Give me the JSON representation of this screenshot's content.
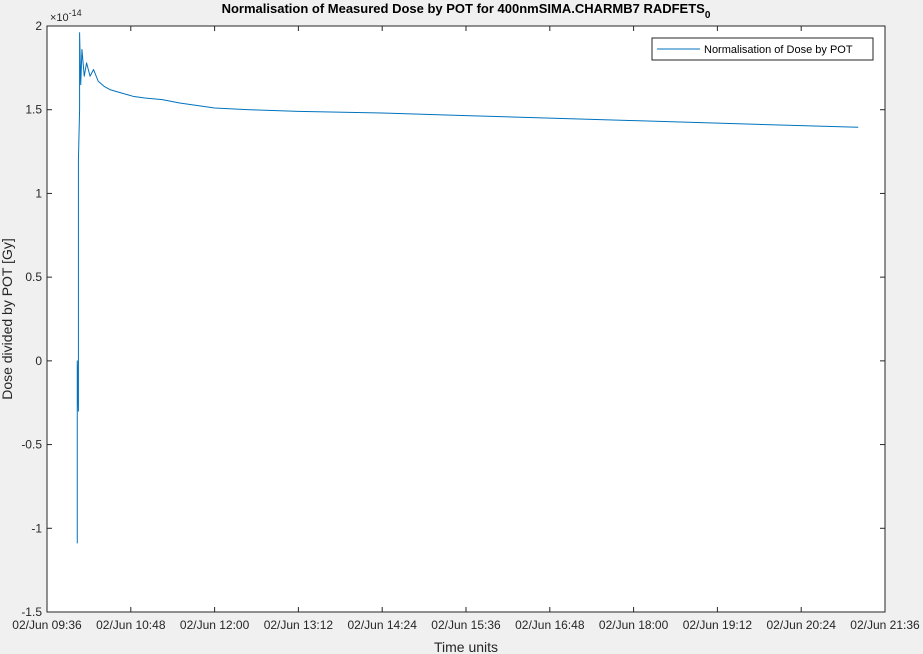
{
  "chart_data": {
    "type": "line",
    "title": "Normalisation of Measured Dose by POT for 400nmSIMA.CHARMB7 RADFETS",
    "title_subscript": "0",
    "xlabel": "Time units",
    "ylabel": "Dose divided by POT [Gy]",
    "y_multiplier_label": "×10",
    "y_multiplier_exponent": "-14",
    "xlim": [
      "02/Jun 09:36",
      "02/Jun 21:36"
    ],
    "ylim": [
      -1.5,
      2
    ],
    "x_ticks": [
      "02/Jun 09:36",
      "02/Jun 10:48",
      "02/Jun 12:00",
      "02/Jun 13:12",
      "02/Jun 14:24",
      "02/Jun 15:36",
      "02/Jun 16:48",
      "02/Jun 18:00",
      "02/Jun 19:12",
      "02/Jun 20:24",
      "02/Jun 21:36"
    ],
    "y_ticks": [
      -1.5,
      -1,
      -0.5,
      0,
      0.5,
      1,
      1.5,
      2
    ],
    "y_tick_labels": [
      "-1.5",
      "-1",
      "-0.5",
      "0",
      "0.5",
      "1",
      "1.5",
      "2"
    ],
    "grid": false,
    "legend_position": "top-right",
    "series": [
      {
        "name": "Normalisation of Dose by POT",
        "color": "#0072BD",
        "x": [
          "02/Jun 10:02",
          "02/Jun 10:02",
          "02/Jun 10:03",
          "02/Jun 10:03",
          "02/Jun 10:04",
          "02/Jun 10:04",
          "02/Jun 10:05",
          "02/Jun 10:06",
          "02/Jun 10:08",
          "02/Jun 10:10",
          "02/Jun 10:13",
          "02/Jun 10:16",
          "02/Jun 10:20",
          "02/Jun 10:25",
          "02/Jun 10:30",
          "02/Jun 10:40",
          "02/Jun 10:50",
          "02/Jun 11:00",
          "02/Jun 11:15",
          "02/Jun 11:30",
          "02/Jun 12:00",
          "02/Jun 12:30",
          "02/Jun 13:12",
          "02/Jun 14:24",
          "02/Jun 15:36",
          "02/Jun 16:48",
          "02/Jun 18:00",
          "02/Jun 19:12",
          "02/Jun 20:24",
          "02/Jun 21:13"
        ],
        "y": [
          -1.09,
          0.0,
          -0.3,
          1.2,
          1.5,
          1.96,
          1.65,
          1.86,
          1.7,
          1.78,
          1.7,
          1.74,
          1.67,
          1.64,
          1.62,
          1.6,
          1.58,
          1.57,
          1.56,
          1.54,
          1.51,
          1.5,
          1.49,
          1.48,
          1.465,
          1.45,
          1.435,
          1.42,
          1.405,
          1.395
        ]
      }
    ]
  }
}
